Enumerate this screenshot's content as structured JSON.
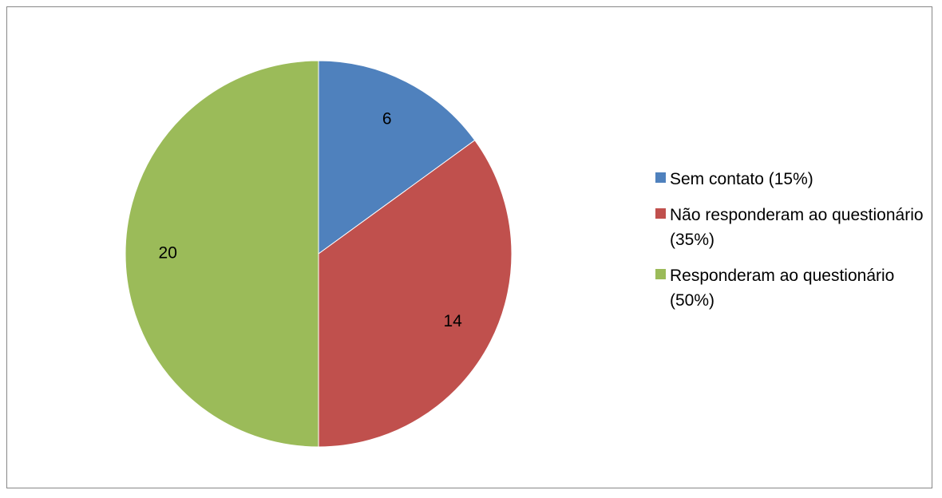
{
  "chart_data": {
    "type": "pie",
    "title": "",
    "legend_position": "right",
    "slices": [
      {
        "label": "Sem contato (15%)",
        "value": 6,
        "data_label": "6",
        "color": "#4F81BD"
      },
      {
        "label": "Não responderam ao questionário (35%)",
        "value": 14,
        "data_label": "14",
        "color": "#C0504D"
      },
      {
        "label": "Responderam ao questionário (50%)",
        "value": 20,
        "data_label": "20",
        "color": "#9BBB59"
      }
    ]
  }
}
